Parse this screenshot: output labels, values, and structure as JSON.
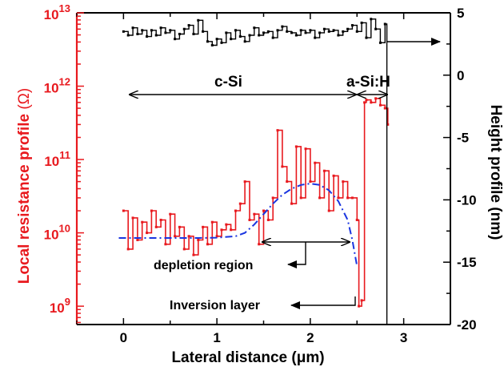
{
  "chart_data": {
    "type": "line",
    "xlabel": "Lateral distance (μm)",
    "ylabel_left_text": "Local resistance profile ",
    "ylabel_left_unit": "(Ω)",
    "ylabel_right": "Height profile (nm)",
    "xlim": [
      -0.5,
      3.5
    ],
    "ylim_left_log10": [
      8.75,
      13
    ],
    "ylim_right": [
      -20,
      5
    ],
    "left_scale": "log",
    "grid": false,
    "colors": {
      "resistance": "#e8191e",
      "left_axis": "#e8191e",
      "height": "#000000",
      "fit": "#1a35e0"
    },
    "x_ticks": [
      0,
      1,
      2,
      3
    ],
    "x_tick_labels": [
      "0",
      "1",
      "2",
      "3"
    ],
    "left_ticks": [
      {
        "base": "10",
        "exp": "9",
        "value": 1000000000.0
      },
      {
        "base": "10",
        "exp": "10",
        "value": 10000000000.0
      },
      {
        "base": "10",
        "exp": "11",
        "value": 100000000000.0
      },
      {
        "base": "10",
        "exp": "12",
        "value": 1000000000000.0
      },
      {
        "base": "10",
        "exp": "13",
        "value": 10000000000000.0
      }
    ],
    "right_ticks": [
      5,
      0,
      -5,
      -10,
      -15,
      -20
    ],
    "right_tick_labels": [
      "5",
      "0",
      "-5",
      "-10",
      "-15",
      "-20"
    ],
    "series": [
      {
        "key": "resistance",
        "axis": "left",
        "x": [
          0.0,
          0.05,
          0.1,
          0.15,
          0.2,
          0.25,
          0.3,
          0.35,
          0.4,
          0.45,
          0.5,
          0.55,
          0.6,
          0.65,
          0.7,
          0.75,
          0.8,
          0.85,
          0.9,
          0.95,
          1.0,
          1.05,
          1.1,
          1.15,
          1.2,
          1.25,
          1.3,
          1.35,
          1.4,
          1.45,
          1.5,
          1.55,
          1.6,
          1.65,
          1.7,
          1.75,
          1.8,
          1.85,
          1.9,
          1.95,
          2.0,
          2.05,
          2.1,
          2.15,
          2.2,
          2.25,
          2.3,
          2.35,
          2.4,
          2.45,
          2.5,
          2.52,
          2.55,
          2.58,
          2.6,
          2.65,
          2.7,
          2.75,
          2.8,
          2.83
        ],
        "y": [
          20000000000.0,
          6000000000.0,
          16000000000.0,
          8000000000.0,
          14000000000.0,
          10000000000.0,
          20000000000.0,
          12000000000.0,
          15000000000.0,
          7000000000.0,
          18000000000.0,
          9000000000.0,
          12000000000.0,
          6000000000.0,
          9000000000.0,
          5000000000.0,
          8000000000.0,
          12000000000.0,
          7000000000.0,
          14000000000.0,
          9000000000.0,
          11000000000.0,
          13000000000.0,
          11000000000.0,
          20000000000.0,
          25000000000.0,
          50000000000.0,
          15000000000.0,
          18000000000.0,
          7000000000.0,
          20000000000.0,
          15000000000.0,
          30000000000.0,
          250000000000.0,
          80000000000.0,
          50000000000.0,
          25000000000.0,
          150000000000.0,
          30000000000.0,
          140000000000.0,
          50000000000.0,
          90000000000.0,
          30000000000.0,
          70000000000.0,
          20000000000.0,
          60000000000.0,
          30000000000.0,
          50000000000.0,
          30000000000.0,
          30000000000.0,
          15000000000.0,
          1000000000.0,
          1200000000.0,
          600000000000.0,
          650000000000.0,
          600000000000.0,
          680000000000.0,
          550000000000.0,
          500000000000.0,
          300000000000.0
        ]
      },
      {
        "key": "fit",
        "axis": "left",
        "x": [
          -0.05,
          0.2,
          0.5,
          0.8,
          1.0,
          1.2,
          1.3,
          1.4,
          1.5,
          1.6,
          1.7,
          1.8,
          1.9,
          2.0,
          2.1,
          2.2,
          2.3,
          2.4,
          2.45,
          2.5
        ],
        "y": [
          8500000000.0,
          8500000000.0,
          8500000000.0,
          8500000000.0,
          8600000000.0,
          9000000000.0,
          10000000000.0,
          13000000000.0,
          18000000000.0,
          25000000000.0,
          33000000000.0,
          40000000000.0,
          45000000000.0,
          47000000000.0,
          45000000000.0,
          38000000000.0,
          27000000000.0,
          15000000000.0,
          8000000000.0,
          3500000000.0
        ]
      },
      {
        "key": "height",
        "axis": "right",
        "x": [
          0.0,
          0.05,
          0.1,
          0.15,
          0.2,
          0.25,
          0.3,
          0.35,
          0.4,
          0.45,
          0.5,
          0.55,
          0.6,
          0.65,
          0.7,
          0.75,
          0.8,
          0.85,
          0.9,
          0.95,
          1.0,
          1.05,
          1.1,
          1.15,
          1.2,
          1.25,
          1.3,
          1.35,
          1.4,
          1.45,
          1.5,
          1.55,
          1.6,
          1.65,
          1.7,
          1.75,
          1.8,
          1.85,
          1.9,
          1.95,
          2.0,
          2.05,
          2.1,
          2.15,
          2.2,
          2.25,
          2.3,
          2.35,
          2.4,
          2.45,
          2.5,
          2.55,
          2.6,
          2.65,
          2.7,
          2.75,
          2.8,
          2.82
        ],
        "y": [
          3.5,
          3.2,
          3.8,
          3.3,
          3.6,
          3.1,
          3.6,
          3.2,
          3.8,
          3.4,
          3.6,
          2.9,
          3.3,
          3.7,
          4.0,
          3.3,
          4.4,
          3.5,
          2.7,
          2.4,
          2.9,
          2.6,
          3.4,
          2.9,
          3.6,
          3.1,
          2.7,
          3.2,
          3.8,
          3.2,
          3.4,
          3.5,
          3.0,
          3.6,
          3.9,
          3.5,
          3.4,
          3.2,
          3.6,
          3.4,
          3.6,
          3.0,
          3.4,
          3.7,
          3.5,
          3.6,
          3.2,
          3.5,
          3.7,
          4.0,
          3.5,
          4.2,
          3.0,
          4.5,
          3.7,
          2.6,
          4.1,
          -20
        ]
      }
    ],
    "annotations": {
      "csi": "c-Si",
      "asih": "a-Si:H",
      "depletion": "depletion region",
      "inversion": "Inversion layer"
    }
  }
}
